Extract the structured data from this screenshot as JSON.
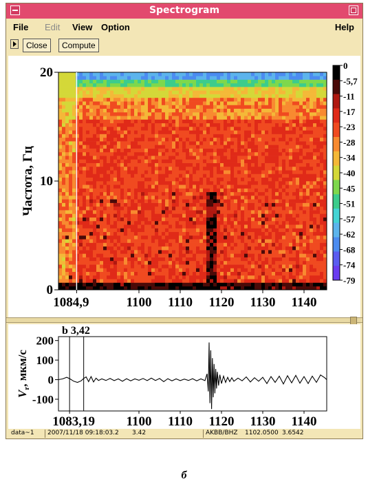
{
  "window": {
    "title": "Spectrogram",
    "title_color": "#e24a6e",
    "background_color": "#f3e6b6"
  },
  "menu": {
    "file": "File",
    "edit": "Edit",
    "view": "View",
    "option": "Option",
    "help": "Help"
  },
  "toolbar": {
    "close": "Close",
    "compute": "Compute"
  },
  "chart_data": [
    {
      "type": "heatmap",
      "title": "",
      "xlabel": "",
      "ylabel": "Частота, Гц",
      "x_ticks": [
        "1084,9",
        "1100",
        "1110",
        "1120",
        "1130",
        "1140"
      ],
      "x_tick_values": [
        1084.9,
        1100,
        1110,
        1120,
        1130,
        1140
      ],
      "y_ticks": [
        "0",
        "10",
        "20"
      ],
      "y_tick_values": [
        0,
        10,
        20
      ],
      "xlim": [
        1080.5,
        1145.5
      ],
      "ylim": [
        0,
        20
      ],
      "cursor_x": 1084.9,
      "colorbar_labels": [
        "0",
        "-5,7",
        "-11",
        "-17",
        "-23",
        "-28",
        "-34",
        "-40",
        "-45",
        "-51",
        "-57",
        "-62",
        "-68",
        "-74",
        "-79"
      ],
      "colorbar_colors": [
        "#000000",
        "#4a0a08",
        "#b01810",
        "#e02a18",
        "#f04a20",
        "#f88a30",
        "#f4b838",
        "#d4d838",
        "#7ed84c",
        "#3ccc8c",
        "#44d4d4",
        "#5cb4ec",
        "#4c8cf0",
        "#5a5cf0",
        "#6a3cf0"
      ],
      "high_energy_band": {
        "x_range": [
          1116,
          1119
        ],
        "y_range": [
          0,
          9
        ]
      },
      "noise_floor_row": {
        "y_range": [
          0,
          0.6
        ]
      }
    },
    {
      "type": "line",
      "title": "",
      "xlabel": "",
      "ylabel": "Vₗ, мкм/с",
      "ylabel_main": "V",
      "ylabel_sub": "r",
      "ylabel_unit": ", мкм/с",
      "cursor_label": "b 3,42",
      "x_ticks": [
        "1083,19",
        "1100",
        "1110",
        "1120",
        "1130",
        "1140"
      ],
      "x_tick_values": [
        1083.19,
        1100,
        1110,
        1120,
        1130,
        1140
      ],
      "y_ticks": [
        "200",
        "100",
        "0",
        "-100"
      ],
      "y_tick_values": [
        200,
        100,
        0,
        -100
      ],
      "xlim": [
        1080.5,
        1145.5
      ],
      "ylim": [
        -160,
        220
      ],
      "markers_x": [
        1083.19,
        1086.61
      ],
      "series": [
        {
          "values": [
            [
              1080.5,
              0
            ],
            [
              1081.5,
              4
            ],
            [
              1082.5,
              12
            ],
            [
              1083.3,
              4
            ],
            [
              1084.2,
              -8
            ],
            [
              1085.1,
              -14
            ],
            [
              1086.0,
              -6
            ],
            [
              1086.6,
              6
            ],
            [
              1087.2,
              14
            ],
            [
              1087.8,
              -10
            ],
            [
              1088.4,
              16
            ],
            [
              1089.0,
              -12
            ],
            [
              1089.6,
              8
            ],
            [
              1090.2,
              -4
            ],
            [
              1091,
              4
            ],
            [
              1092,
              -4
            ],
            [
              1093,
              6
            ],
            [
              1094,
              -5
            ],
            [
              1095,
              4
            ],
            [
              1096,
              -8
            ],
            [
              1097,
              5
            ],
            [
              1098,
              -6
            ],
            [
              1099,
              4
            ],
            [
              1100,
              -3
            ],
            [
              1101,
              6
            ],
            [
              1102,
              -5
            ],
            [
              1103,
              8
            ],
            [
              1104,
              -4
            ],
            [
              1105,
              6
            ],
            [
              1106,
              -10
            ],
            [
              1107,
              5
            ],
            [
              1108,
              -6
            ],
            [
              1109,
              4
            ],
            [
              1110,
              -5
            ],
            [
              1111,
              3
            ],
            [
              1112,
              -4
            ],
            [
              1113,
              5
            ],
            [
              1114,
              -6
            ],
            [
              1115,
              4
            ],
            [
              1116,
              -5
            ],
            [
              1116.5,
              30
            ],
            [
              1116.8,
              -60
            ],
            [
              1117.0,
              190
            ],
            [
              1117.2,
              -120
            ],
            [
              1117.4,
              150
            ],
            [
              1117.6,
              -150
            ],
            [
              1117.8,
              110
            ],
            [
              1118.0,
              -90
            ],
            [
              1118.2,
              80
            ],
            [
              1118.4,
              -70
            ],
            [
              1118.6,
              55
            ],
            [
              1118.8,
              -45
            ],
            [
              1119.0,
              40
            ],
            [
              1119.3,
              -30
            ],
            [
              1119.6,
              25
            ],
            [
              1120,
              -20
            ],
            [
              1120.5,
              18
            ],
            [
              1121,
              -14
            ],
            [
              1121.5,
              12
            ],
            [
              1122,
              -10
            ],
            [
              1122.5,
              10
            ],
            [
              1123,
              -8
            ],
            [
              1124,
              8
            ],
            [
              1125,
              -6
            ],
            [
              1126,
              14
            ],
            [
              1127,
              -12
            ],
            [
              1128,
              10
            ],
            [
              1129,
              -8
            ],
            [
              1130,
              12
            ],
            [
              1131,
              -20
            ],
            [
              1132,
              16
            ],
            [
              1133,
              -14
            ],
            [
              1134,
              18
            ],
            [
              1135,
              -22
            ],
            [
              1136,
              20
            ],
            [
              1137,
              -16
            ],
            [
              1138,
              22
            ],
            [
              1139,
              -18
            ],
            [
              1140,
              16
            ],
            [
              1141,
              -20
            ],
            [
              1142,
              18
            ],
            [
              1143,
              -14
            ],
            [
              1144,
              24
            ],
            [
              1145,
              10
            ],
            [
              1145.5,
              0
            ]
          ]
        }
      ]
    }
  ],
  "status": {
    "dataset": "data~1",
    "datetime": "2007/11/18 09:18:03.2",
    "value": "3.42",
    "channel": "AKBB/BHZ",
    "time": "1102.0500",
    "amplitude": "3.6542"
  },
  "caption": "б"
}
